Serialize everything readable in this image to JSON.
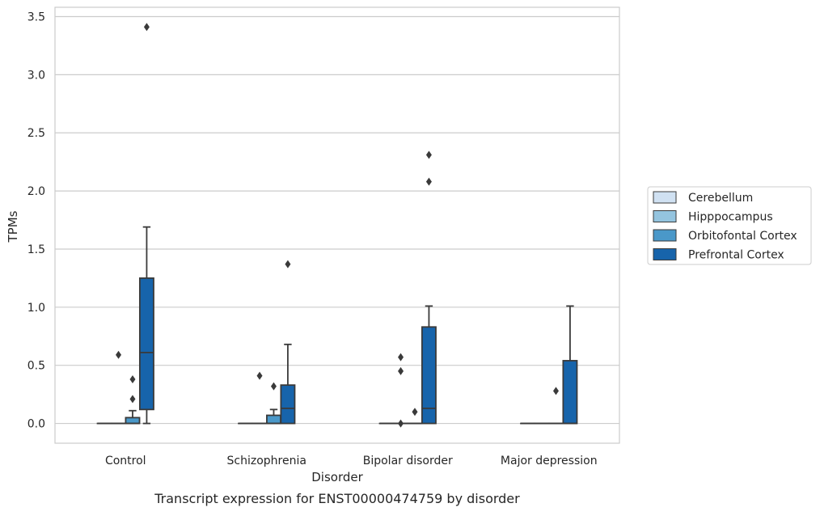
{
  "chart_data": {
    "type": "box",
    "xlabel": "Disorder",
    "ylabel": "TPMs",
    "caption": "Transcript expression for ENST00000474759 by disorder",
    "ylim": [
      -0.17,
      3.58
    ],
    "yticks": [
      0.0,
      0.5,
      1.0,
      1.5,
      2.0,
      2.5,
      3.0,
      3.5
    ],
    "ytick_labels": [
      "0.0",
      "0.5",
      "1.0",
      "1.5",
      "2.0",
      "2.5",
      "3.0",
      "3.5"
    ],
    "grid": "horizontal",
    "legend_position": "right",
    "categories": [
      "Control",
      "Schizophrenia",
      "Bipolar disorder",
      "Major depression"
    ],
    "series": [
      {
        "name": "Cerebellum",
        "color": "#d0e1f2",
        "boxes": [
          {
            "whislo": 0,
            "q1": 0,
            "med": 0,
            "q3": 0,
            "whishi": 0,
            "fliers": []
          },
          {
            "whislo": 0,
            "q1": 0,
            "med": 0,
            "q3": 0,
            "whishi": 0,
            "fliers": []
          },
          {
            "whislo": 0,
            "q1": 0,
            "med": 0,
            "q3": 0,
            "whishi": 0,
            "fliers": []
          },
          {
            "whislo": 0,
            "q1": 0,
            "med": 0,
            "q3": 0,
            "whishi": 0,
            "fliers": []
          }
        ]
      },
      {
        "name": "Hipppocampus",
        "color": "#94c4df",
        "boxes": [
          {
            "whislo": 0,
            "q1": 0,
            "med": 0,
            "q3": 0,
            "whishi": 0,
            "fliers": [
              0.59
            ]
          },
          {
            "whislo": 0,
            "q1": 0,
            "med": 0,
            "q3": 0,
            "whishi": 0,
            "fliers": [
              0.41
            ]
          },
          {
            "whislo": 0,
            "q1": 0,
            "med": 0,
            "q3": 0,
            "whishi": 0,
            "fliers": [
              0.0,
              0.45,
              0.57
            ]
          },
          {
            "whislo": 0,
            "q1": 0,
            "med": 0,
            "q3": 0,
            "whishi": 0,
            "fliers": []
          }
        ]
      },
      {
        "name": "Orbitofontal Cortex",
        "color": "#4a98c9",
        "boxes": [
          {
            "whislo": 0,
            "q1": 0,
            "med": 0,
            "q3": 0.05,
            "whishi": 0.11,
            "fliers": [
              0.21,
              0.38
            ]
          },
          {
            "whislo": 0,
            "q1": 0,
            "med": 0,
            "q3": 0.07,
            "whishi": 0.12,
            "fliers": [
              0.32
            ]
          },
          {
            "whislo": 0,
            "q1": 0,
            "med": 0,
            "q3": 0,
            "whishi": 0,
            "fliers": [
              0.1
            ]
          },
          {
            "whislo": 0,
            "q1": 0,
            "med": 0,
            "q3": 0,
            "whishi": 0,
            "fliers": [
              0.28
            ]
          }
        ]
      },
      {
        "name": "Prefrontal Cortex",
        "color": "#1764ab",
        "boxes": [
          {
            "whislo": 0,
            "q1": 0.12,
            "med": 0.61,
            "q3": 1.25,
            "whishi": 1.69,
            "fliers": [
              3.41
            ]
          },
          {
            "whislo": 0,
            "q1": 0,
            "med": 0.13,
            "q3": 0.33,
            "whishi": 0.68,
            "fliers": [
              1.37
            ]
          },
          {
            "whislo": 0,
            "q1": 0,
            "med": 0.13,
            "q3": 0.83,
            "whishi": 1.01,
            "fliers": [
              2.08,
              2.31
            ]
          },
          {
            "whislo": 0,
            "q1": 0,
            "med": 0,
            "q3": 0.54,
            "whishi": 1.01,
            "fliers": []
          }
        ]
      }
    ]
  }
}
